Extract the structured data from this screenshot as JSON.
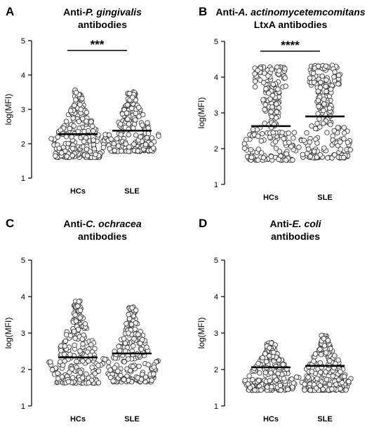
{
  "chart_data": [
    {
      "type": "scatter",
      "panel_letter": "A",
      "title_prefix": "Anti-",
      "title_species": "P. gingivalis",
      "title_suffix": "",
      "title_line2": "antibodies",
      "ylabel": "log(MFI)",
      "ylim": [
        1,
        5
      ],
      "yticks": [
        "1",
        "2",
        "3",
        "4",
        "5"
      ],
      "categories": [
        "HCs",
        "SLE"
      ],
      "means": [
        2.28,
        2.38
      ],
      "spread": [
        {
          "min": 1.6,
          "max": 3.58
        },
        {
          "min": 1.78,
          "max": 3.53
        }
      ],
      "significance": "***"
    },
    {
      "type": "scatter",
      "panel_letter": "B",
      "title_prefix": "Anti-",
      "title_species": "A. actinomycetemcomitans",
      "title_suffix": "",
      "title_line2": "LtxA antibodies",
      "ylabel": "log(MFI)",
      "ylim": [
        1,
        5
      ],
      "yticks": [
        "1",
        "2",
        "3",
        "4",
        "5"
      ],
      "categories": [
        "HCs",
        "SLE"
      ],
      "means": [
        2.63,
        2.9
      ],
      "spread": [
        {
          "min": 1.68,
          "max": 4.28
        },
        {
          "min": 1.74,
          "max": 4.33
        }
      ],
      "significance": "****"
    },
    {
      "type": "scatter",
      "panel_letter": "C",
      "title_prefix": "Anti-",
      "title_species": "C. ochracea",
      "title_suffix": "",
      "title_line2": "antibodies",
      "ylabel": "log(MFI)",
      "ylim": [
        1,
        5
      ],
      "yticks": [
        "1",
        "2",
        "3",
        "4",
        "5"
      ],
      "categories": [
        "HCs",
        "SLE"
      ],
      "means": [
        2.33,
        2.44
      ],
      "spread": [
        {
          "min": 1.63,
          "max": 3.88
        },
        {
          "min": 1.66,
          "max": 3.73
        }
      ],
      "significance": ""
    },
    {
      "type": "scatter",
      "panel_letter": "D",
      "title_prefix": "Anti-",
      "title_species": "E. coli",
      "title_suffix": "",
      "title_line2": "antibodies",
      "ylabel": "log(MFI)",
      "ylim": [
        1,
        5
      ],
      "yticks": [
        "1",
        "2",
        "3",
        "4",
        "5"
      ],
      "categories": [
        "HCs",
        "SLE"
      ],
      "means": [
        2.06,
        2.1
      ],
      "spread": [
        {
          "min": 1.43,
          "max": 2.74
        },
        {
          "min": 1.43,
          "max": 2.96
        }
      ],
      "significance": ""
    }
  ],
  "colors": {
    "point_fill": "#f2f2f2",
    "point_stroke": "#333333",
    "mean_line": "#000000",
    "axis": "#000000"
  }
}
